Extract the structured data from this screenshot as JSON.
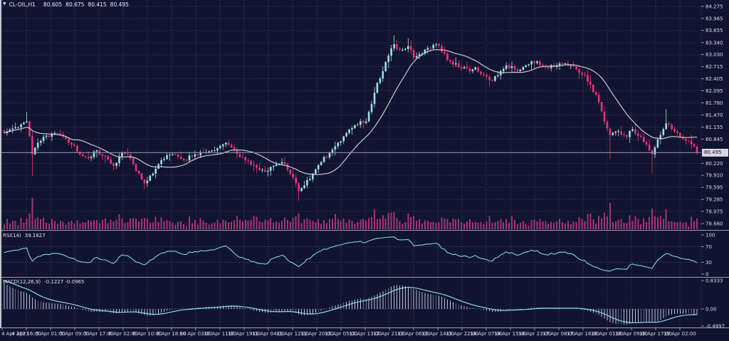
{
  "window": {
    "title_marker": "▼",
    "symbol": "CL-OIL,H1",
    "ohlc": {
      "open": "80.605",
      "high": "80.675",
      "low": "80.415",
      "close": "80.495"
    }
  },
  "colors": {
    "background": "#111430",
    "left_border": "#c2c6d2",
    "grid": "#3d4876",
    "level_line": "#4c588a",
    "bull": "#9fe0df",
    "bear": "#ef3076",
    "ma_line": "#c9c7d6",
    "volume": "#a43374",
    "rsi_line": "#79d3e6",
    "macd_hist": "#b9c2d8",
    "macd_signal": "#8bd9ea",
    "axis_text": "#d7dbe9",
    "tick": "#8a93ac",
    "separator": "#9aa0ac",
    "price_line": "#8a93ac",
    "badge_bg": "#d6d6de",
    "badge_text": "#11142f"
  },
  "chart_data": {
    "type": "candlestick",
    "symbol": "CL-OIL",
    "timeframe": "H1",
    "title": "CL-OIL,H1 80.605 80.675 80.415 80.495",
    "ohlc_last_display": {
      "open": "80.605",
      "high": "80.675",
      "low": "80.415",
      "close": "80.495"
    },
    "current_price": 80.495,
    "current_price_label": "80.495",
    "price_axis": {
      "max": 84.275,
      "min": 78.66,
      "tick_labels": [
        "84.275",
        "83.965",
        "83.655",
        "83.340",
        "83.030",
        "82.715",
        "82.405",
        "82.095",
        "81.780",
        "81.470",
        "81.155",
        "80.845",
        "80.220",
        "79.910",
        "79.595",
        "79.285",
        "78.975",
        "78.660"
      ]
    },
    "time_axis": {
      "labels": [
        "4 Apr 2023",
        "4 Apr 16:00",
        "5 Apr 01:00",
        "5 Apr 09:00",
        "5 Apr 17:00",
        "6 Apr 02:00",
        "6 Apr 10:00",
        "6 Apr 18:00",
        "10 Apr 03:00",
        "10 Apr 11:00",
        "10 Apr 19:00",
        "11 Apr 04:00",
        "11 Apr 12:00",
        "11 Apr 20:00",
        "12 Apr 05:00",
        "12 Apr 13:00",
        "12 Apr 21:00",
        "13 Apr 06:00",
        "13 Apr 14:00",
        "13 Apr 22:00",
        "14 Apr 07:00",
        "14 Apr 15:00",
        "14 Apr 23:00",
        "17 Apr 08:00",
        "17 Apr 16:00",
        "18 Apr 01:00",
        "18 Apr 09:00",
        "18 Apr 17:00",
        "19 Apr 02:00"
      ]
    },
    "candles": {
      "count": 248,
      "anchors": [
        [
          0,
          81.0
        ],
        [
          4,
          81.15
        ],
        [
          8,
          81.3
        ],
        [
          10,
          80.45
        ],
        [
          12,
          80.75
        ],
        [
          14,
          80.9
        ],
        [
          18,
          81.0
        ],
        [
          22,
          80.85
        ],
        [
          24,
          80.7
        ],
        [
          27,
          80.45
        ],
        [
          30,
          80.35
        ],
        [
          33,
          80.55
        ],
        [
          36,
          80.4
        ],
        [
          39,
          80.15
        ],
        [
          42,
          80.5
        ],
        [
          45,
          80.35
        ],
        [
          49,
          79.8
        ],
        [
          50,
          79.7
        ],
        [
          53,
          79.95
        ],
        [
          56,
          80.3
        ],
        [
          60,
          80.45
        ],
        [
          64,
          80.3
        ],
        [
          68,
          80.45
        ],
        [
          72,
          80.5
        ],
        [
          75,
          80.55
        ],
        [
          79,
          80.75
        ],
        [
          82,
          80.55
        ],
        [
          86,
          80.3
        ],
        [
          90,
          80.1
        ],
        [
          93,
          80.0
        ],
        [
          96,
          80.15
        ],
        [
          99,
          80.25
        ],
        [
          101,
          80.05
        ],
        [
          103,
          79.85
        ],
        [
          105,
          79.5
        ],
        [
          107,
          79.65
        ],
        [
          110,
          79.95
        ],
        [
          113,
          80.25
        ],
        [
          116,
          80.5
        ],
        [
          119,
          80.75
        ],
        [
          122,
          81.0
        ],
        [
          125,
          81.2
        ],
        [
          129,
          81.3
        ],
        [
          131,
          81.75
        ],
        [
          133,
          82.3
        ],
        [
          135,
          82.6
        ],
        [
          137,
          83.0
        ],
        [
          139,
          83.3
        ],
        [
          141,
          83.15
        ],
        [
          144,
          83.25
        ],
        [
          146,
          82.95
        ],
        [
          149,
          83.05
        ],
        [
          151,
          83.2
        ],
        [
          154,
          83.3
        ],
        [
          156,
          83.1
        ],
        [
          159,
          82.85
        ],
        [
          162,
          82.7
        ],
        [
          166,
          82.6
        ],
        [
          168,
          82.7
        ],
        [
          171,
          82.5
        ],
        [
          174,
          82.35
        ],
        [
          177,
          82.6
        ],
        [
          179,
          82.75
        ],
        [
          183,
          82.6
        ],
        [
          186,
          82.75
        ],
        [
          190,
          82.85
        ],
        [
          193,
          82.7
        ],
        [
          197,
          82.75
        ],
        [
          200,
          82.8
        ],
        [
          204,
          82.65
        ],
        [
          207,
          82.5
        ],
        [
          209,
          82.25
        ],
        [
          212,
          81.8
        ],
        [
          214,
          81.3
        ],
        [
          216,
          80.95
        ],
        [
          219,
          81.05
        ],
        [
          222,
          80.9
        ],
        [
          224,
          81.1
        ],
        [
          227,
          80.9
        ],
        [
          229,
          80.7
        ],
        [
          231,
          80.45
        ],
        [
          234,
          80.95
        ],
        [
          236,
          81.25
        ],
        [
          238,
          81.1
        ],
        [
          240,
          81.0
        ],
        [
          242,
          80.85
        ],
        [
          244,
          80.8
        ],
        [
          246,
          80.65
        ],
        [
          247,
          80.495
        ]
      ],
      "wick_extremes": [
        {
          "i": 8,
          "high": 81.55
        },
        {
          "i": 10,
          "low": 79.88
        },
        {
          "i": 50,
          "low": 79.55
        },
        {
          "i": 105,
          "low": 79.25
        },
        {
          "i": 139,
          "high": 83.53
        },
        {
          "i": 144,
          "high": 83.45
        },
        {
          "i": 216,
          "low": 80.33
        },
        {
          "i": 231,
          "low": 79.95
        },
        {
          "i": 236,
          "high": 81.62
        }
      ]
    },
    "moving_average": {
      "type": "SMA",
      "period": 16
    },
    "indicators": {
      "rsi": {
        "label": "RSI(14)",
        "period": 14,
        "value_display": "39.1627",
        "last": 39.1627,
        "levels": [
          70,
          30
        ],
        "range": [
          0,
          100
        ],
        "axis_labels": [
          "100",
          "70",
          "30",
          "0"
        ],
        "axis_values": [
          100,
          70,
          30,
          0
        ]
      },
      "macd": {
        "label": "MACD(12,26,9)",
        "fast": 12,
        "slow": 26,
        "signal": 9,
        "value_display": "-0.1227 -0.0965",
        "last_main": -0.1227,
        "last_signal": -0.0965,
        "axis_labels": [
          "0.8333",
          "0.00",
          "-0.4997"
        ],
        "axis_values": [
          0.8333,
          0,
          -0.4997
        ]
      }
    }
  }
}
